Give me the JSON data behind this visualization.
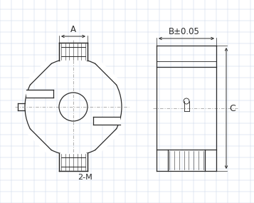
{
  "bg_color": "#ffffff",
  "grid_color": "#c8d4e8",
  "line_color": "#2a2a2a",
  "centerline_color": "#999999",
  "label_A": "A",
  "label_B": "B±0.05",
  "label_C": "C",
  "label_2M": "2-M",
  "fig_width": 3.57,
  "fig_height": 2.85,
  "dpi": 100,
  "lw": 0.9
}
